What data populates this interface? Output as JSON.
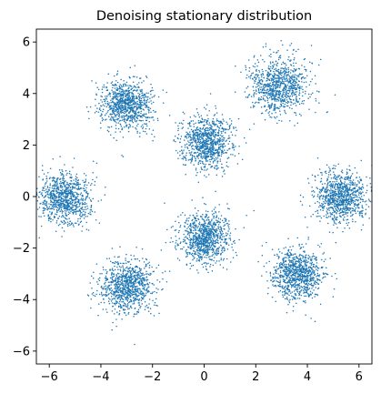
{
  "chart_data": {
    "type": "scatter",
    "title": "Denoising stationary distribution",
    "xlabel": "",
    "ylabel": "",
    "xlim": [
      -6.5,
      6.5
    ],
    "ylim": [
      -6.5,
      6.5
    ],
    "x_ticks": [
      -6,
      -4,
      -2,
      0,
      2,
      4,
      6
    ],
    "y_ticks": [
      -6,
      -4,
      -2,
      0,
      2,
      4,
      6
    ],
    "x_tick_labels": [
      "−6",
      "−4",
      "−2",
      "0",
      "2",
      "4",
      "6"
    ],
    "y_tick_labels": [
      "−6",
      "−4",
      "−2",
      "0",
      "2",
      "4",
      "6"
    ],
    "grid": false,
    "legend": "none",
    "point_color": "#1f77b4",
    "clusters": [
      {
        "center": [
          -5.4,
          -0.1
        ],
        "spread": 0.5
      },
      {
        "center": [
          -3.0,
          3.6
        ],
        "spread": 0.5
      },
      {
        "center": [
          0.1,
          2.1
        ],
        "spread": 0.5
      },
      {
        "center": [
          2.9,
          4.3
        ],
        "spread": 0.55
      },
      {
        "center": [
          5.3,
          0.0
        ],
        "spread": 0.5
      },
      {
        "center": [
          3.6,
          -3.0
        ],
        "spread": 0.5
      },
      {
        "center": [
          0.0,
          -1.6
        ],
        "spread": 0.5
      },
      {
        "center": [
          -3.0,
          -3.5
        ],
        "spread": 0.5
      }
    ]
  }
}
